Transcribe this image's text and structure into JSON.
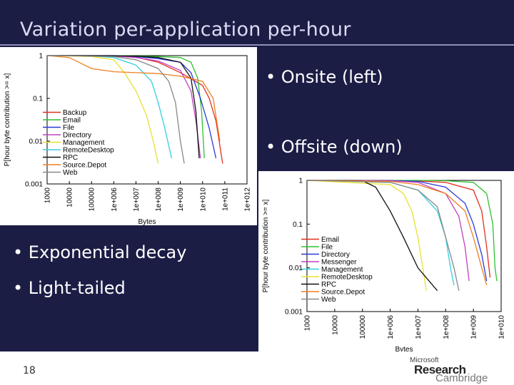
{
  "slide": {
    "title": "Variation per-application per-hour",
    "bullets_right": [
      "• Onsite (left)",
      "• Offsite (down)"
    ],
    "bullets_left": [
      "• Exponential decay",
      "• Light-tailed"
    ],
    "page_number": "18"
  },
  "logo": {
    "line1": "Microsoft",
    "line2": "Research",
    "line3": "Cambridge"
  },
  "colors": {
    "background": "#1c1d45",
    "title": "#d9dcf2",
    "bullet": "#ffffff",
    "footer": "#ffffff"
  },
  "chart_data": [
    {
      "type": "line",
      "title": "",
      "xlabel": "Bytes",
      "ylabel": "P[hour byte contribution >= x]",
      "x_scale": "log",
      "y_scale": "log",
      "xlim": [
        1000,
        1000000000000
      ],
      "ylim": [
        0.001,
        1
      ],
      "x_ticks": [
        "1000",
        "10000",
        "100000",
        "1e+006",
        "1e+007",
        "1e+008",
        "1e+009",
        "1e+010",
        "1e+011",
        "1e+012"
      ],
      "y_ticks": [
        "1",
        "0.1",
        "0.01",
        "0.001"
      ],
      "legend_position": "bottom-left",
      "series": [
        {
          "name": "Backup",
          "color": "#e0301e",
          "points": [
            [
              1000,
              1
            ],
            [
              1000000,
              1
            ],
            [
              10000000,
              0.92
            ],
            [
              100000000,
              0.7
            ],
            [
              1000000000,
              0.4
            ],
            [
              10000000000,
              0.2
            ],
            [
              20000000000,
              0.1
            ],
            [
              40000000000,
              0.03
            ],
            [
              80000000000,
              0.003
            ]
          ]
        },
        {
          "name": "Email",
          "color": "#2fbf30",
          "points": [
            [
              1000,
              1
            ],
            [
              1000000,
              1
            ],
            [
              10000000,
              0.98
            ],
            [
              100000000,
              0.95
            ],
            [
              1000000000,
              0.9
            ],
            [
              3000000000,
              0.7
            ],
            [
              6000000000,
              0.3
            ],
            [
              9000000000,
              0.05
            ],
            [
              12000000000,
              0.004
            ]
          ]
        },
        {
          "name": "File",
          "color": "#2b3ad6",
          "points": [
            [
              1000,
              1
            ],
            [
              1000000,
              1
            ],
            [
              10000000,
              0.95
            ],
            [
              100000000,
              0.85
            ],
            [
              1000000000,
              0.7
            ],
            [
              3000000000,
              0.4
            ],
            [
              8000000000,
              0.1
            ],
            [
              20000000000,
              0.02
            ],
            [
              40000000000,
              0.004
            ]
          ]
        },
        {
          "name": "Directory",
          "color": "#c040c0",
          "points": [
            [
              1000,
              1
            ],
            [
              1000000,
              0.98
            ],
            [
              10000000,
              0.9
            ],
            [
              100000000,
              0.75
            ],
            [
              1000000000,
              0.45
            ],
            [
              3000000000,
              0.15
            ],
            [
              5000000000,
              0.03
            ],
            [
              8000000000,
              0.004
            ]
          ]
        },
        {
          "name": "Management",
          "color": "#e8e030",
          "points": [
            [
              1000,
              1
            ],
            [
              100000,
              0.95
            ],
            [
              1000000,
              0.8
            ],
            [
              3000000,
              0.4
            ],
            [
              10000000,
              0.15
            ],
            [
              30000000,
              0.04
            ],
            [
              60000000,
              0.01
            ],
            [
              100000000,
              0.003
            ]
          ]
        },
        {
          "name": "RemoteDesktop",
          "color": "#30d0e0",
          "points": [
            [
              1000,
              1
            ],
            [
              100000,
              0.98
            ],
            [
              1000000,
              0.9
            ],
            [
              10000000,
              0.6
            ],
            [
              50000000,
              0.25
            ],
            [
              100000000,
              0.08
            ],
            [
              200000000,
              0.02
            ],
            [
              400000000,
              0.004
            ]
          ]
        },
        {
          "name": "RPC",
          "color": "#111111",
          "points": [
            [
              1000,
              1
            ],
            [
              1000000,
              0.99
            ],
            [
              10000000,
              0.97
            ],
            [
              100000000,
              0.9
            ],
            [
              1000000000,
              0.7
            ],
            [
              3000000000,
              0.3
            ],
            [
              5000000000,
              0.05
            ],
            [
              7000000000,
              0.004
            ]
          ]
        },
        {
          "name": "Source.Depot",
          "color": "#f07f20",
          "points": [
            [
              1000,
              1
            ],
            [
              10000,
              0.9
            ],
            [
              100000,
              0.5
            ],
            [
              1000000,
              0.42
            ],
            [
              10000000,
              0.4
            ],
            [
              100000000,
              0.38
            ],
            [
              1000000000,
              0.33
            ],
            [
              10000000000,
              0.25
            ],
            [
              30000000000,
              0.1
            ],
            [
              60000000000,
              0.01
            ]
          ]
        },
        {
          "name": "Web",
          "color": "#888888",
          "points": [
            [
              1000,
              1
            ],
            [
              1000000,
              0.95
            ],
            [
              10000000,
              0.8
            ],
            [
              100000000,
              0.5
            ],
            [
              300000000,
              0.25
            ],
            [
              600000000,
              0.08
            ],
            [
              1000000000,
              0.01
            ],
            [
              1500000000,
              0.003
            ]
          ]
        }
      ]
    },
    {
      "type": "line",
      "title": "",
      "xlabel": "Bytes",
      "ylabel": "P[hour byte contribution >= x]",
      "x_scale": "log",
      "y_scale": "log",
      "xlim": [
        1000,
        10000000000
      ],
      "ylim": [
        0.001,
        1
      ],
      "x_ticks": [
        "1000",
        "10000",
        "100000",
        "1e+006",
        "1e+007",
        "1e+008",
        "1e+009",
        "1e+010"
      ],
      "y_ticks": [
        "1",
        "0.1",
        "0.01",
        "0.001"
      ],
      "legend_position": "bottom-left",
      "series": [
        {
          "name": "Email",
          "color": "#e0301e",
          "points": [
            [
              1000,
              1
            ],
            [
              1000000,
              1
            ],
            [
              10000000,
              0.97
            ],
            [
              100000000,
              0.9
            ],
            [
              1000000000,
              0.6
            ],
            [
              2000000000,
              0.2
            ],
            [
              3000000000,
              0.03
            ],
            [
              4000000000,
              0.006
            ]
          ]
        },
        {
          "name": "File",
          "color": "#2fbf30",
          "points": [
            [
              1000,
              1
            ],
            [
              10000000,
              1
            ],
            [
              100000000,
              0.98
            ],
            [
              1000000000,
              0.9
            ],
            [
              3000000000,
              0.5
            ],
            [
              5000000000,
              0.1
            ],
            [
              6000000000,
              0.01
            ],
            [
              7000000000,
              0.005
            ]
          ]
        },
        {
          "name": "Directory",
          "color": "#2b3ad6",
          "points": [
            [
              1000,
              1
            ],
            [
              1000000,
              0.99
            ],
            [
              10000000,
              0.95
            ],
            [
              100000000,
              0.7
            ],
            [
              500000000,
              0.3
            ],
            [
              1000000000,
              0.1
            ],
            [
              2000000000,
              0.02
            ],
            [
              3000000000,
              0.005
            ]
          ]
        },
        {
          "name": "Messenger",
          "color": "#c040c0",
          "points": [
            [
              1000,
              1
            ],
            [
              1000000,
              0.98
            ],
            [
              10000000,
              0.9
            ],
            [
              100000000,
              0.5
            ],
            [
              300000000,
              0.15
            ],
            [
              500000000,
              0.03
            ],
            [
              700000000,
              0.005
            ]
          ]
        },
        {
          "name": "Management",
          "color": "#30d0e0",
          "points": [
            [
              1000,
              1
            ],
            [
              1000000,
              0.9
            ],
            [
              10000000,
              0.6
            ],
            [
              50000000,
              0.2
            ],
            [
              100000000,
              0.05
            ],
            [
              150000000,
              0.01
            ],
            [
              200000000,
              0.004
            ]
          ]
        },
        {
          "name": "RemoteDesktop",
          "color": "#e8e030",
          "points": [
            [
              1000,
              1
            ],
            [
              1000000,
              0.8
            ],
            [
              3000000,
              0.5
            ],
            [
              6000000,
              0.2
            ],
            [
              10000000,
              0.05
            ],
            [
              15000000,
              0.01
            ],
            [
              20000000,
              0.003
            ]
          ]
        },
        {
          "name": "RPC",
          "color": "#111111",
          "points": [
            [
              1000,
              1
            ],
            [
              100000,
              0.98
            ],
            [
              300000,
              0.7
            ],
            [
              1000000,
              0.2
            ],
            [
              3000000,
              0.05
            ],
            [
              10000000,
              0.01
            ],
            [
              50000000,
              0.003
            ]
          ]
        },
        {
          "name": "Source.Depot",
          "color": "#f07f20",
          "points": [
            [
              1000,
              1
            ],
            [
              1000000,
              0.95
            ],
            [
              10000000,
              0.8
            ],
            [
              100000000,
              0.5
            ],
            [
              500000000,
              0.2
            ],
            [
              1000000000,
              0.05
            ],
            [
              2000000000,
              0.01
            ],
            [
              3000000000,
              0.004
            ]
          ]
        },
        {
          "name": "Web",
          "color": "#888888",
          "points": [
            [
              1000,
              1
            ],
            [
              1000000,
              0.9
            ],
            [
              10000000,
              0.6
            ],
            [
              50000000,
              0.25
            ],
            [
              100000000,
              0.05
            ],
            [
              200000000,
              0.01
            ],
            [
              300000000,
              0.003
            ]
          ]
        }
      ]
    }
  ]
}
